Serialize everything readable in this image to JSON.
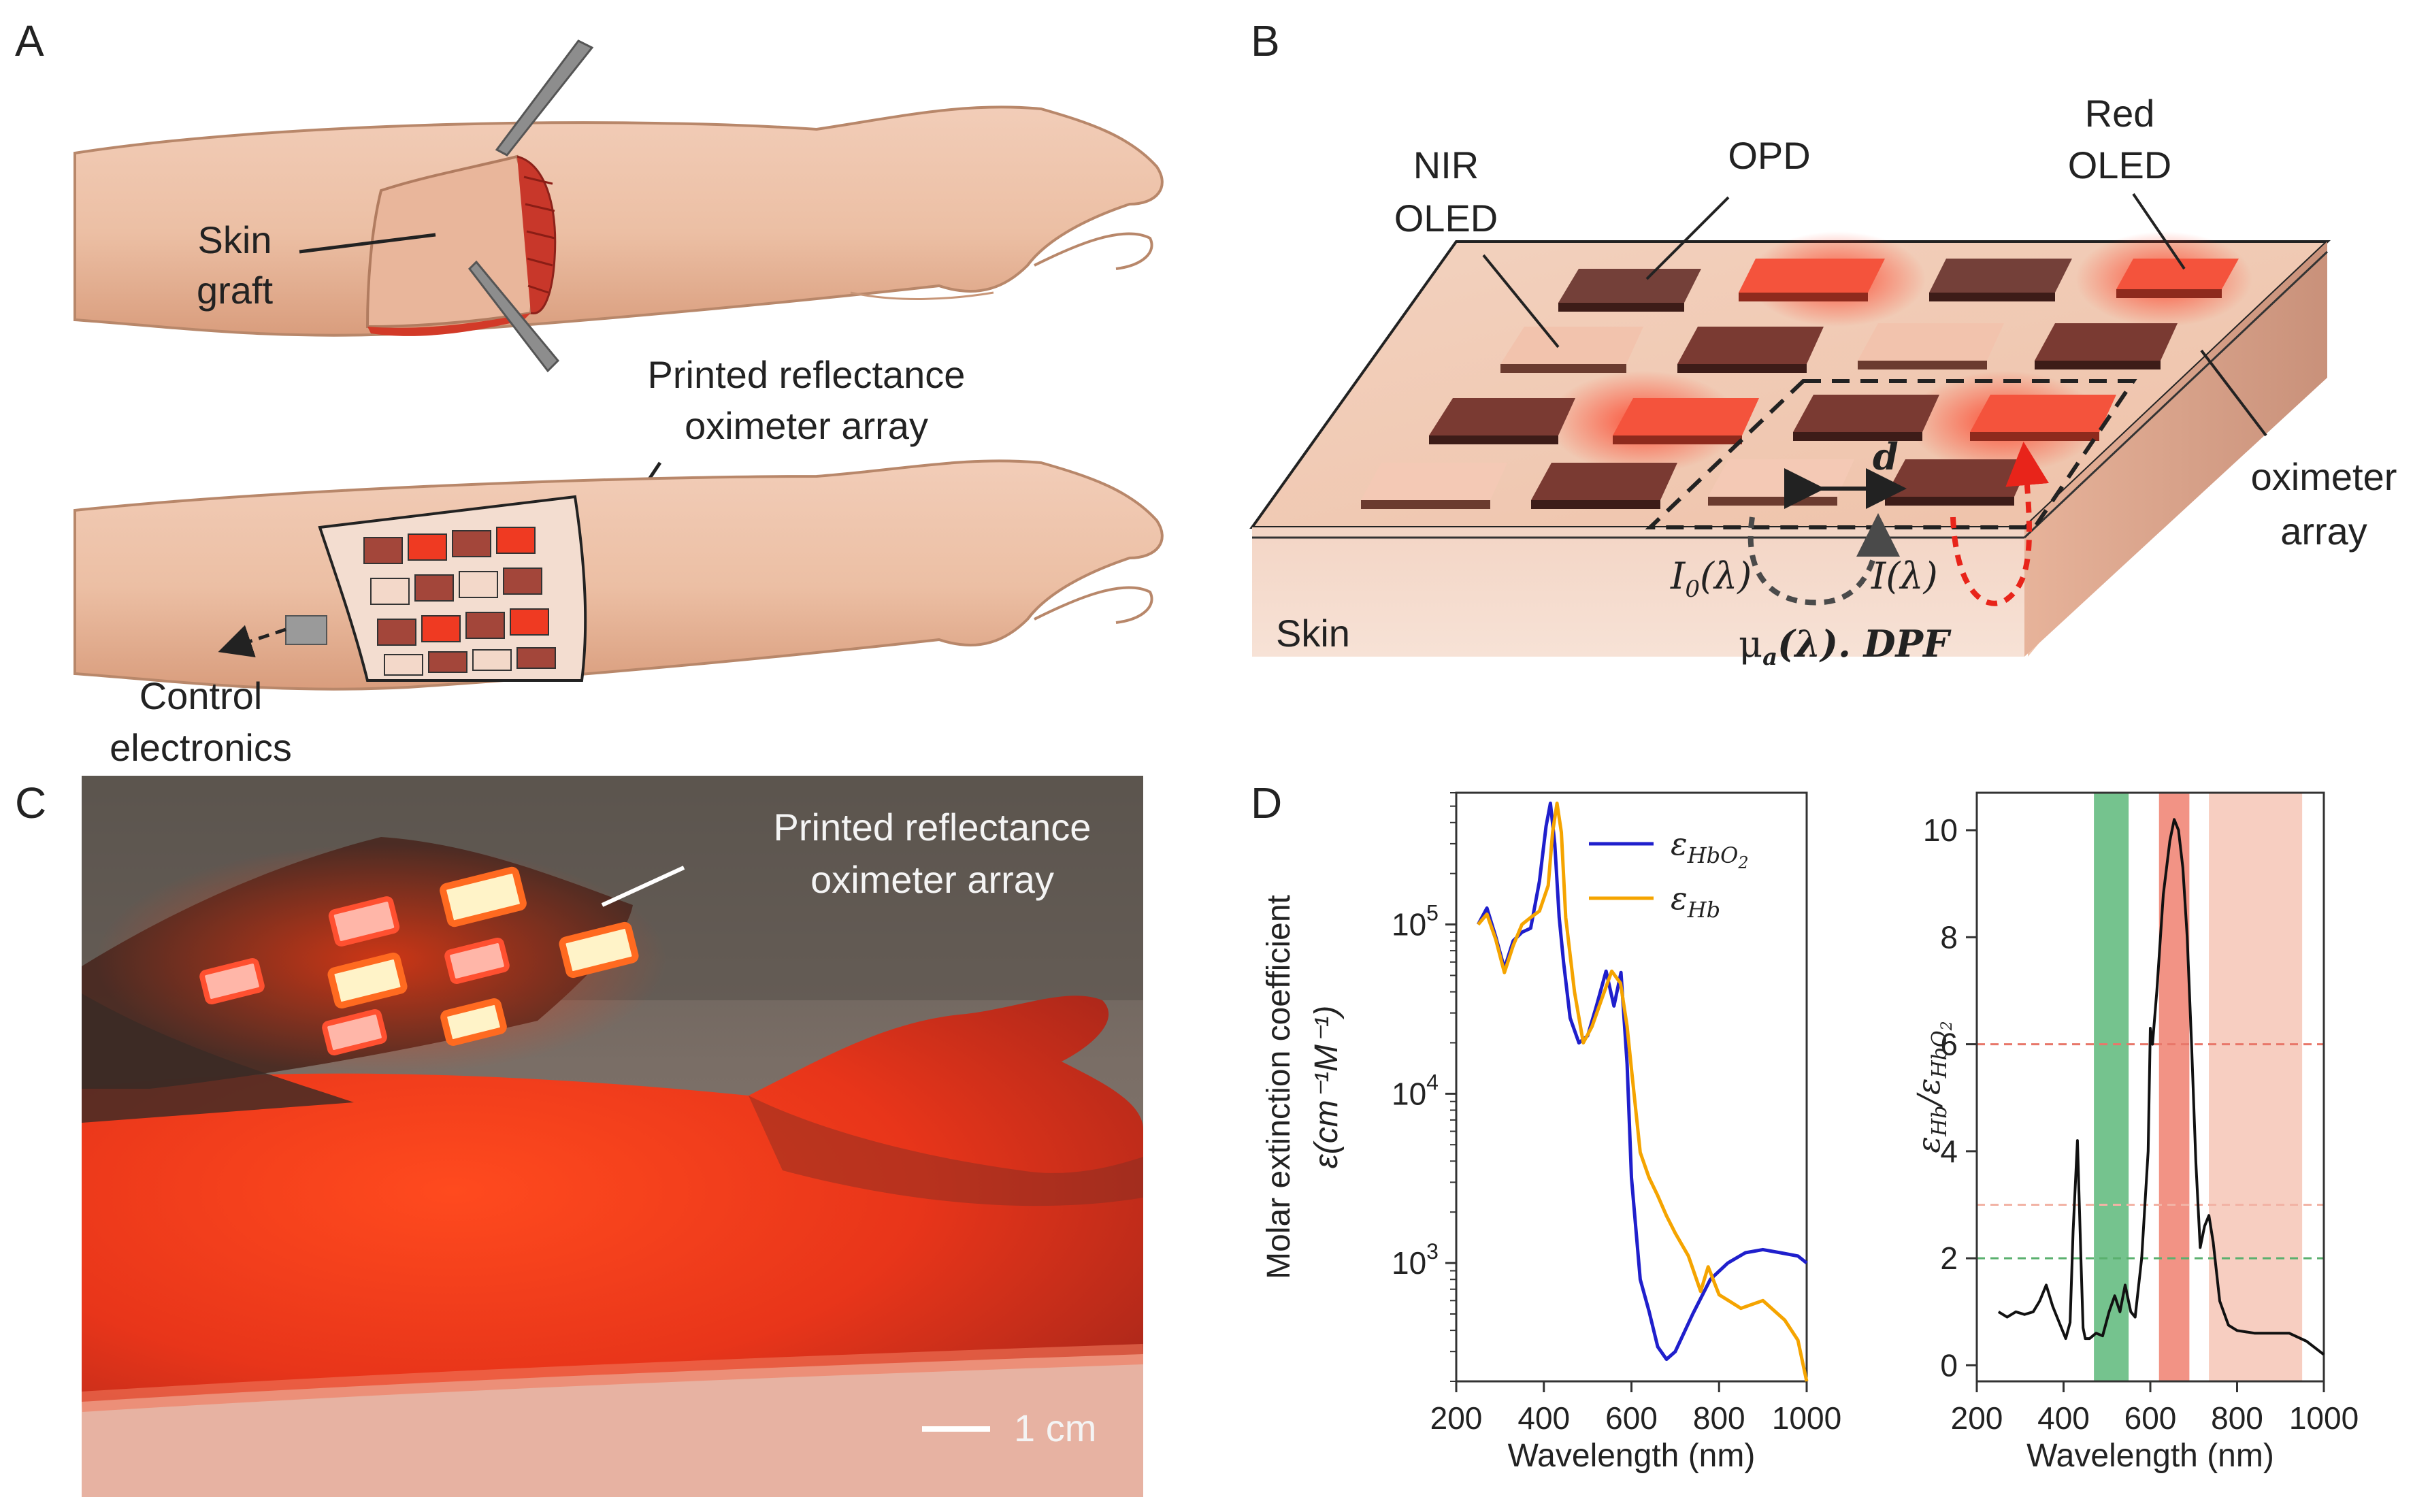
{
  "panels": {
    "a": {
      "letter": "A",
      "skin_graft_line1": "Skin",
      "skin_graft_line2": "graft",
      "array_line1": "Printed reflectance",
      "array_line2": "oximeter array",
      "control_line1": "Control",
      "control_line2": "electronics"
    },
    "b": {
      "letter": "B",
      "nir_line1": "NIR",
      "nir_line2": "OLED",
      "opd": "OPD",
      "red_line1": "Red",
      "red_line2": "OLED",
      "oximeter_line1": "oximeter",
      "oximeter_line2": "array",
      "skin": "Skin",
      "d": "d",
      "i0": "I",
      "i0_sub": "0",
      "i0_arg": "(λ)",
      "i": "I(λ)",
      "mu": "μ",
      "mu_sub": "a",
      "mu_rest": "(λ). DPF"
    },
    "c": {
      "letter": "C",
      "array_line1": "Printed reflectance",
      "array_line2": "oximeter array",
      "scale": "1 cm"
    },
    "d": {
      "letter": "D"
    }
  },
  "colors": {
    "hbo2": "#1f1fcc",
    "hb": "#f5a400",
    "green_band": "#5db97a",
    "red_band": "#f08070",
    "nir_band": "#f6c6b6",
    "ratio_line": "#111111"
  },
  "chart_data": [
    {
      "type": "line",
      "title": "",
      "xlabel": "Wavelength (nm)",
      "ylabel_line1": "Molar extinction coefficient",
      "ylabel_line2": "ε(cm⁻¹M⁻¹)",
      "y_scale": "log",
      "xlim": [
        200,
        1000
      ],
      "ylim": [
        200,
        600000
      ],
      "x_ticks": [
        200,
        400,
        600,
        800,
        1000
      ],
      "y_ticks": [
        1000,
        10000,
        100000
      ],
      "y_tick_labels": [
        {
          "base": "10",
          "exp": "3"
        },
        {
          "base": "10",
          "exp": "4"
        },
        {
          "base": "10",
          "exp": "5"
        }
      ],
      "legend": [
        {
          "name": "ε",
          "sub": "HbO",
          "subsub": "2",
          "color_key": "hbo2"
        },
        {
          "name": "ε",
          "sub": "Hb",
          "subsub": "",
          "color_key": "hb"
        }
      ],
      "series": [
        {
          "name": "HbO2",
          "color_key": "hbo2",
          "x": [
            250,
            270,
            290,
            310,
            330,
            350,
            370,
            390,
            405,
            415,
            425,
            435,
            445,
            460,
            480,
            500,
            520,
            542,
            560,
            576,
            590,
            600,
            620,
            640,
            660,
            680,
            700,
            740,
            780,
            820,
            860,
            900,
            940,
            980,
            1000
          ],
          "y": [
            100000,
            125000,
            85000,
            55000,
            80000,
            90000,
            95000,
            180000,
            380000,
            520000,
            300000,
            110000,
            60000,
            28000,
            20000,
            22000,
            33000,
            53000,
            33000,
            52000,
            15000,
            3200,
            800,
            520,
            320,
            270,
            300,
            500,
            800,
            1000,
            1150,
            1200,
            1150,
            1100,
            1000
          ]
        },
        {
          "name": "Hb",
          "color_key": "hb",
          "x": [
            250,
            270,
            290,
            310,
            330,
            350,
            370,
            390,
            410,
            420,
            430,
            440,
            450,
            470,
            490,
            510,
            530,
            555,
            575,
            590,
            600,
            620,
            640,
            660,
            680,
            700,
            730,
            758,
            775,
            800,
            850,
            900,
            950,
            980,
            1000
          ],
          "y": [
            100000,
            115000,
            82000,
            52000,
            75000,
            100000,
            110000,
            120000,
            170000,
            350000,
            520000,
            350000,
            110000,
            40000,
            20000,
            25000,
            35000,
            53000,
            45000,
            25000,
            14000,
            4500,
            3200,
            2500,
            1900,
            1500,
            1100,
            680,
            950,
            650,
            540,
            600,
            460,
            350,
            200
          ]
        }
      ]
    },
    {
      "type": "line",
      "title": "",
      "xlabel": "Wavelength (nm)",
      "ylabel": "ε_Hb/ε_HbO2",
      "ylabel_parts": {
        "eps": "ε",
        "hb": "Hb",
        "slash": "/",
        "hbo": "HbO",
        "two": "2"
      },
      "xlim": [
        200,
        1000
      ],
      "ylim": [
        -0.3,
        10.7
      ],
      "x_ticks": [
        200,
        400,
        600,
        800,
        1000
      ],
      "y_ticks": [
        0,
        2,
        4,
        6,
        8,
        10
      ],
      "bands": [
        {
          "from": 470,
          "to": 550,
          "color_key": "green_band"
        },
        {
          "from": 620,
          "to": 690,
          "color_key": "red_band"
        },
        {
          "from": 735,
          "to": 950,
          "color_key": "nir_band"
        }
      ],
      "hlines": [
        {
          "y": 6,
          "color": "#e8776a"
        },
        {
          "y": 3,
          "color": "#f2b3a5"
        },
        {
          "y": 2,
          "color": "#5ab06e"
        }
      ],
      "series": [
        {
          "name": "ratio",
          "color_key": "ratio_line",
          "x": [
            250,
            270,
            290,
            310,
            330,
            345,
            360,
            375,
            390,
            405,
            415,
            422,
            432,
            440,
            445,
            450,
            460,
            475,
            490,
            505,
            518,
            530,
            542,
            555,
            565,
            580,
            595,
            600,
            605,
            615,
            630,
            645,
            655,
            665,
            675,
            685,
            695,
            705,
            715,
            725,
            735,
            745,
            760,
            780,
            800,
            840,
            880,
            920,
            960,
            1000
          ],
          "y": [
            1.0,
            0.9,
            1.0,
            0.95,
            1.0,
            1.2,
            1.5,
            1.1,
            0.8,
            0.5,
            0.8,
            2.5,
            4.2,
            2.0,
            0.7,
            0.5,
            0.5,
            0.6,
            0.55,
            1.0,
            1.3,
            1.0,
            1.5,
            1.0,
            0.9,
            2.0,
            4.0,
            6.3,
            6.0,
            7.0,
            8.8,
            9.8,
            10.2,
            10.0,
            9.3,
            8.0,
            6.0,
            3.8,
            2.2,
            2.6,
            2.8,
            2.3,
            1.2,
            0.75,
            0.65,
            0.6,
            0.6,
            0.6,
            0.45,
            0.2
          ]
        }
      ]
    }
  ]
}
